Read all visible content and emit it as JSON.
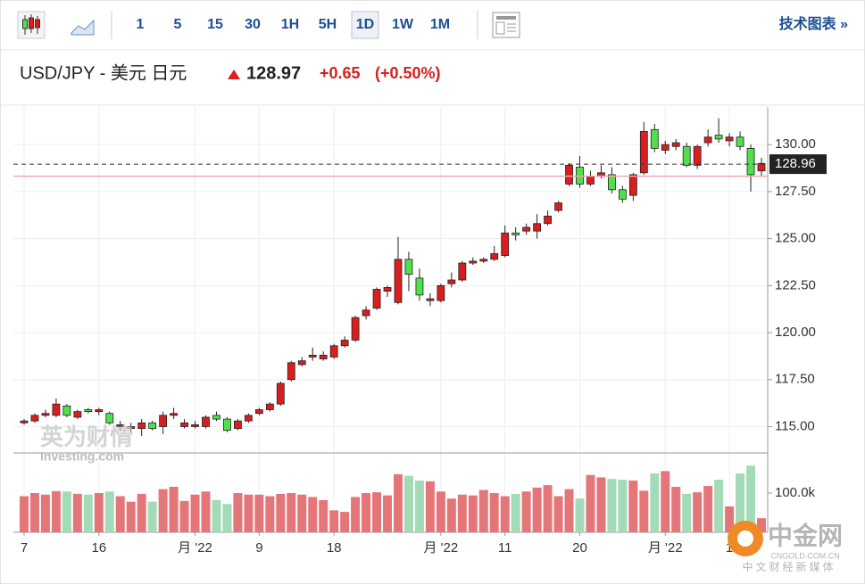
{
  "toolbar": {
    "intervals": [
      "1",
      "5",
      "15",
      "30",
      "1H",
      "5H",
      "1D",
      "1W",
      "1M"
    ],
    "active": 6,
    "link": "技术图表 »"
  },
  "header": {
    "symbol": "USD/JPY - 美元 日元",
    "price": "128.97",
    "change": "+0.65",
    "change_pct": "(+0.50%)"
  },
  "watermark": {
    "brand": "英为财情",
    "site": "Investing.com",
    "logo": "中金网",
    "logo_site": "CNGOLD.COM.CN",
    "logo_slogan": "中文财经新媒体"
  },
  "chart_data": {
    "type": "candlestick",
    "categories": [
      "7",
      null,
      null,
      null,
      null,
      null,
      null,
      "16",
      null,
      null,
      null,
      null,
      null,
      null,
      null,
      null,
      "月 '22",
      null,
      null,
      null,
      null,
      null,
      "9",
      null,
      null,
      null,
      null,
      null,
      null,
      "18",
      null,
      null,
      null,
      null,
      null,
      null,
      null,
      null,
      null,
      "月 '22",
      null,
      null,
      null,
      null,
      null,
      "11",
      null,
      null,
      null,
      null,
      null,
      null,
      "20",
      null,
      null,
      null,
      null,
      null,
      null,
      null,
      "月 '22",
      null,
      null,
      null,
      null,
      null,
      "1",
      null,
      null,
      null
    ],
    "open": [
      115.2,
      115.3,
      115.6,
      115.6,
      116.1,
      115.5,
      115.9,
      115.8,
      115.7,
      115.0,
      114.9,
      114.9,
      115.2,
      115.0,
      115.6,
      115.0,
      115.0,
      115.0,
      115.6,
      115.4,
      114.9,
      115.3,
      115.7,
      115.9,
      116.2,
      117.5,
      118.3,
      118.7,
      118.6,
      118.7,
      119.3,
      119.6,
      120.9,
      121.3,
      122.2,
      121.6,
      123.9,
      122.9,
      121.7,
      121.7,
      122.6,
      122.8,
      123.7,
      123.8,
      123.9,
      124.1,
      125.3,
      125.4,
      125.4,
      125.8,
      126.5,
      127.9,
      128.8,
      127.9,
      128.3,
      128.4,
      127.6,
      127.3,
      128.5,
      130.8,
      129.7,
      129.9,
      129.9,
      128.9,
      130.1,
      130.5,
      130.2,
      130.4,
      129.8,
      128.6
    ],
    "high": [
      115.4,
      115.7,
      115.9,
      116.5,
      116.2,
      115.9,
      116.0,
      116.0,
      115.8,
      115.3,
      115.2,
      115.4,
      115.3,
      115.8,
      116.0,
      115.4,
      115.3,
      115.6,
      115.8,
      115.5,
      115.4,
      115.7,
      116.0,
      116.3,
      117.4,
      118.5,
      118.7,
      119.2,
      119.0,
      119.4,
      119.8,
      120.9,
      121.4,
      122.4,
      122.5,
      125.1,
      124.3,
      123.4,
      122.1,
      122.6,
      123.2,
      123.8,
      124.0,
      124.0,
      124.6,
      125.7,
      125.6,
      125.8,
      126.3,
      126.5,
      127.0,
      129.0,
      129.4,
      128.6,
      128.9,
      128.8,
      127.8,
      128.5,
      131.2,
      131.1,
      130.2,
      130.3,
      130.1,
      130.0,
      130.8,
      131.4,
      130.6,
      130.7,
      130.0,
      129.3
    ],
    "low": [
      115.1,
      115.2,
      115.5,
      115.5,
      115.5,
      115.4,
      115.7,
      115.6,
      115.1,
      114.8,
      114.7,
      114.5,
      114.8,
      114.6,
      115.4,
      114.9,
      114.9,
      114.9,
      115.3,
      114.7,
      114.8,
      115.2,
      115.6,
      115.8,
      116.1,
      117.4,
      118.2,
      118.5,
      118.5,
      118.6,
      119.2,
      119.5,
      120.7,
      121.2,
      121.9,
      121.5,
      122.2,
      121.7,
      121.4,
      121.6,
      122.4,
      122.7,
      123.6,
      123.7,
      123.8,
      124.0,
      124.9,
      125.2,
      125.0,
      125.7,
      126.4,
      127.8,
      127.7,
      127.8,
      128.2,
      127.4,
      126.9,
      127.0,
      128.4,
      129.6,
      129.5,
      129.7,
      128.8,
      128.7,
      129.9,
      130.1,
      129.9,
      129.7,
      127.5,
      128.3
    ],
    "close": [
      115.3,
      115.6,
      115.7,
      116.2,
      115.6,
      115.8,
      115.8,
      115.9,
      115.2,
      115.1,
      115.0,
      115.2,
      114.9,
      115.6,
      115.7,
      115.2,
      115.1,
      115.5,
      115.4,
      114.8,
      115.3,
      115.6,
      115.9,
      116.2,
      117.3,
      118.4,
      118.5,
      118.8,
      118.8,
      119.3,
      119.6,
      120.8,
      121.2,
      122.3,
      122.4,
      123.9,
      123.1,
      122.0,
      121.8,
      122.5,
      122.8,
      123.7,
      123.8,
      123.9,
      124.2,
      125.3,
      125.2,
      125.6,
      125.8,
      126.2,
      126.9,
      128.9,
      127.9,
      128.3,
      128.5,
      127.6,
      127.1,
      128.4,
      130.7,
      129.8,
      130.0,
      130.1,
      128.9,
      129.9,
      130.4,
      130.3,
      130.4,
      129.9,
      128.4,
      129.0
    ],
    "volume": [
      92000,
      100000,
      96000,
      105000,
      104000,
      98000,
      96000,
      100000,
      104000,
      92000,
      78000,
      98000,
      78000,
      110000,
      116000,
      80000,
      96000,
      104000,
      82000,
      72000,
      100000,
      96000,
      96000,
      92000,
      98000,
      100000,
      96000,
      90000,
      82000,
      56000,
      52000,
      90000,
      100000,
      102000,
      94000,
      148000,
      144000,
      132000,
      130000,
      104000,
      86000,
      96000,
      94000,
      108000,
      100000,
      92000,
      98000,
      104000,
      114000,
      120000,
      92000,
      110000,
      86000,
      146000,
      140000,
      136000,
      134000,
      132000,
      106000,
      150000,
      156000,
      116000,
      98000,
      102000,
      118000,
      134000,
      66000,
      150000,
      170000,
      36000
    ],
    "up_color": "#d81e1e",
    "down_color": "#4fe04a",
    "volume_up_color": "#e4767a",
    "volume_down_color": "#a3dbb8",
    "ylim": [
      113.6,
      132.0
    ],
    "yticks": [
      {
        "value": 115,
        "label": "115.00"
      },
      {
        "value": 117.5,
        "label": "117.50"
      },
      {
        "value": 120,
        "label": "120.00"
      },
      {
        "value": 122.5,
        "label": "122.50"
      },
      {
        "value": 125,
        "label": "125.00"
      },
      {
        "value": 127.5,
        "label": "127.50"
      },
      {
        "value": 130,
        "label": "130.00"
      }
    ],
    "volume_ylim": [
      0,
      200000
    ],
    "volume_ticks": [
      {
        "value": 100000,
        "label": "100.0k"
      }
    ],
    "last_price": {
      "value": 128.96,
      "label": "128.96"
    },
    "previous_close": 128.32,
    "grid": true
  }
}
